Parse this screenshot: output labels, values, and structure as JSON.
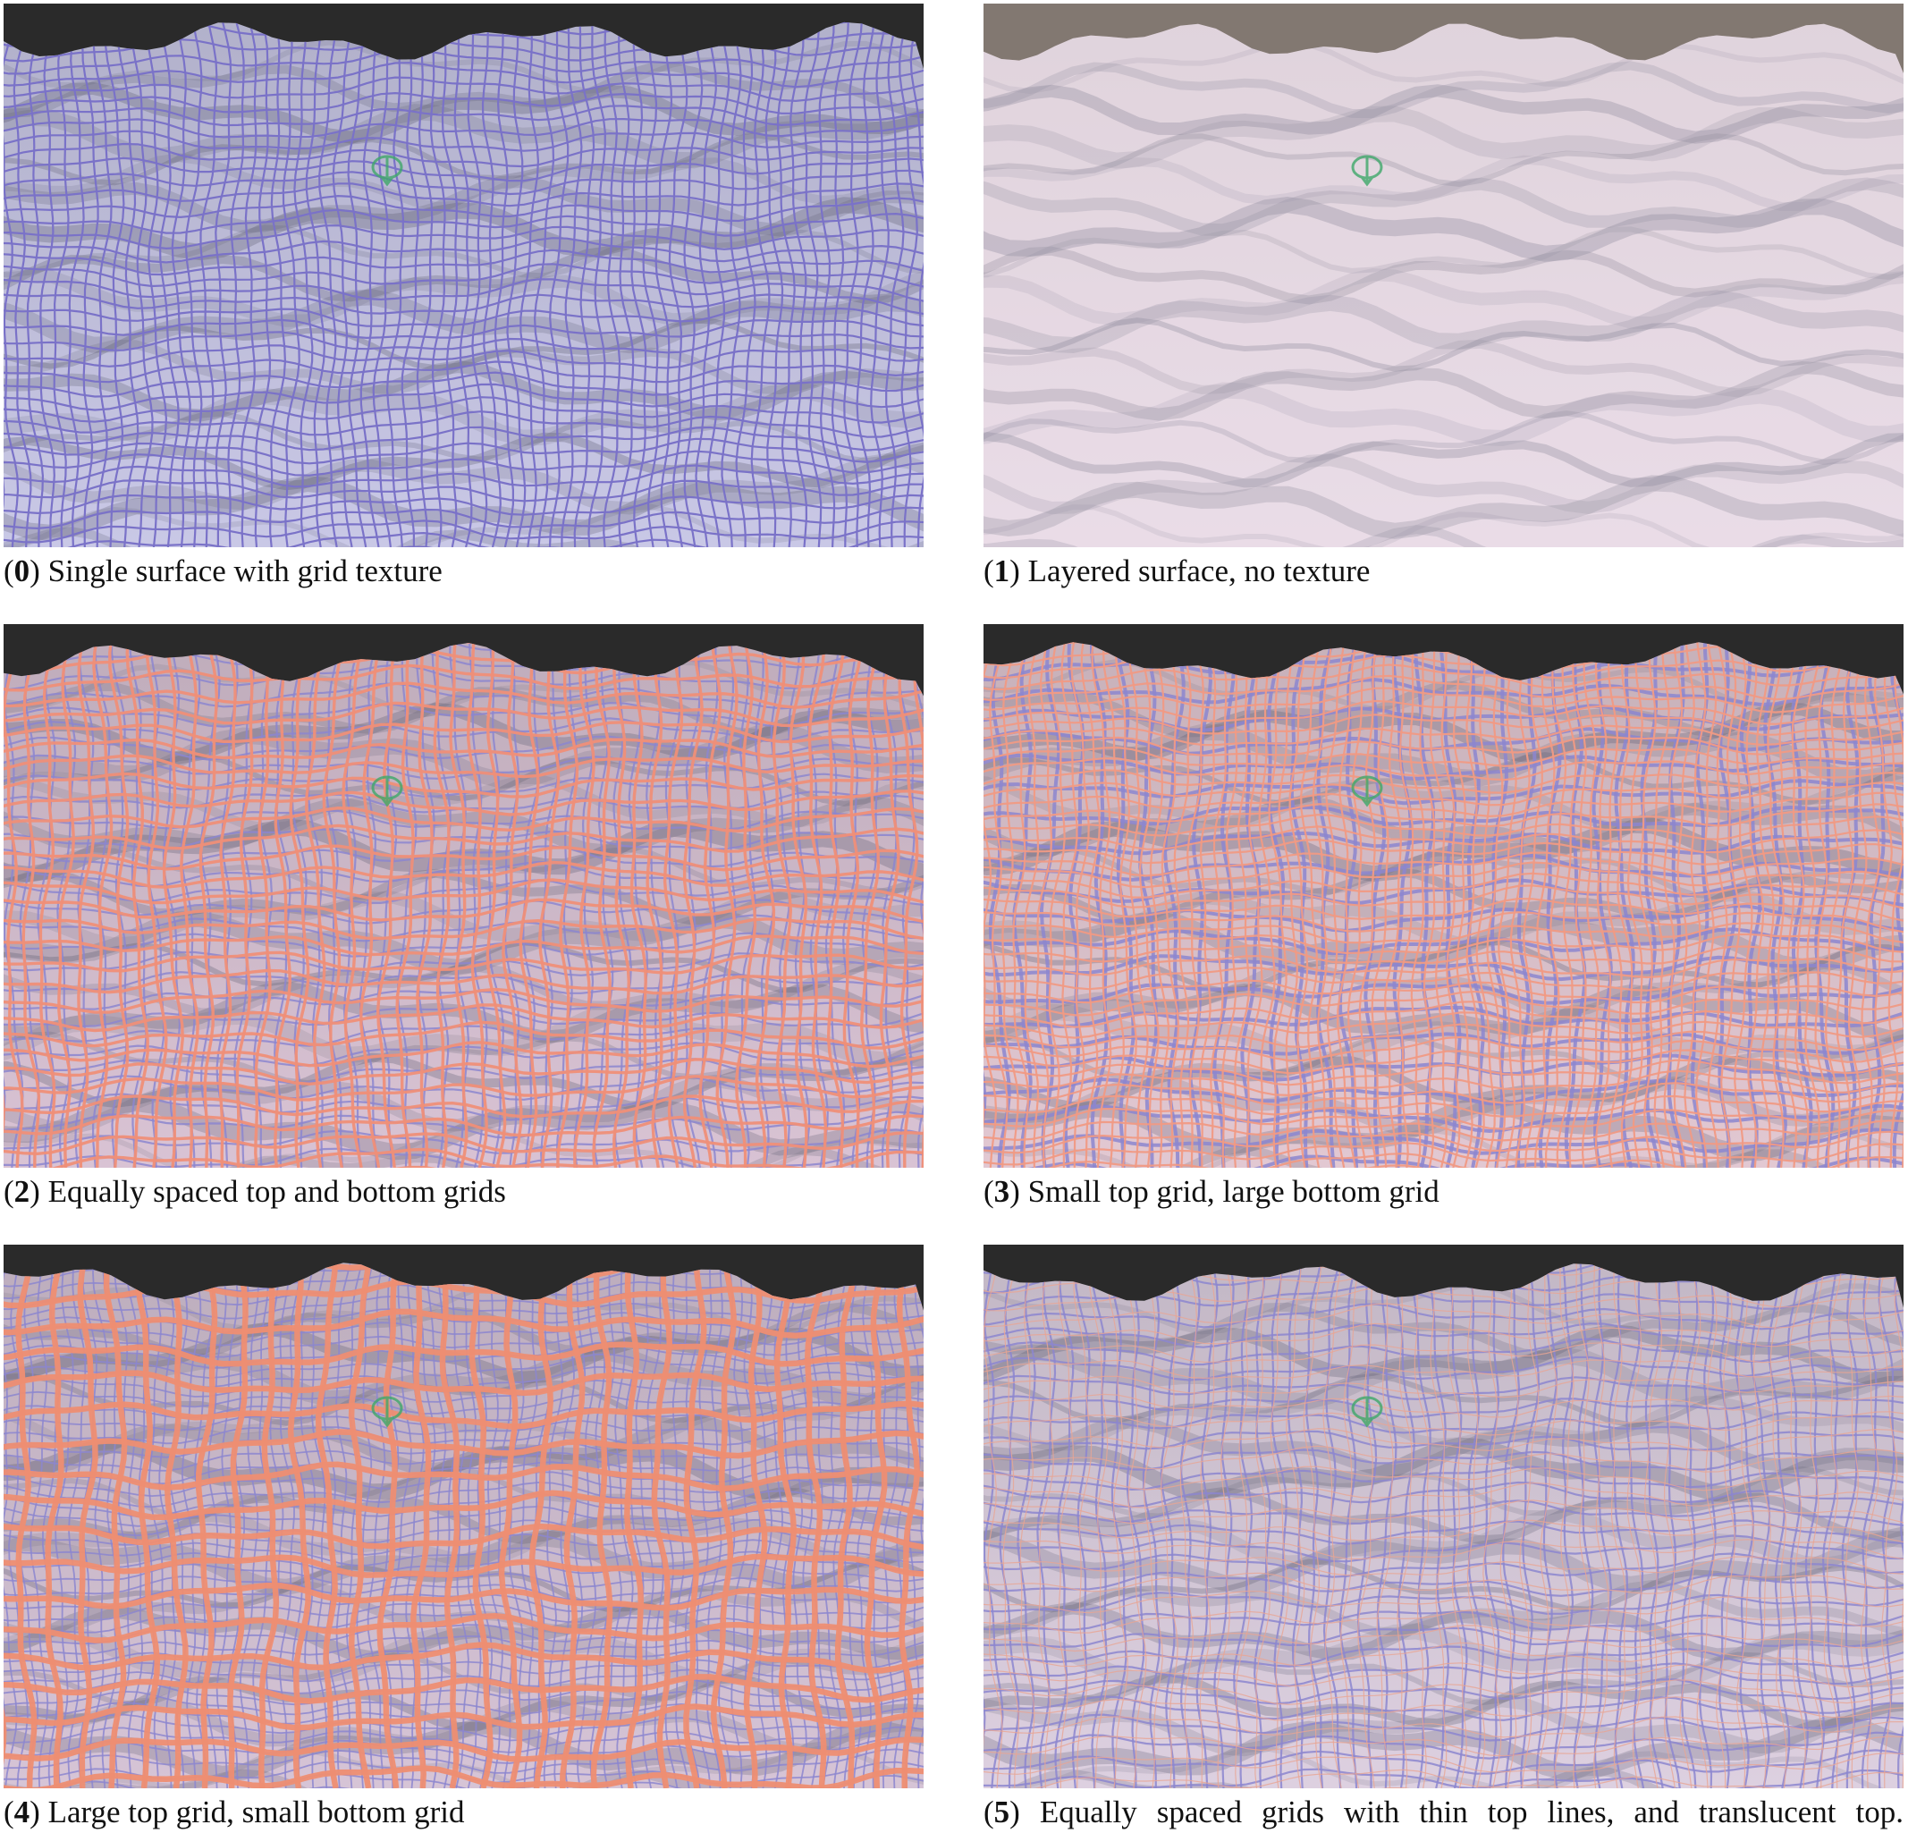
{
  "figure": {
    "panels": [
      {
        "number": "0",
        "label": "Single surface with grid texture",
        "surface_color": "#c9c8e6",
        "top_grid_color": "#7a72c8",
        "bottom_grid_color": "",
        "shading": "#5a5a6e"
      },
      {
        "number": "1",
        "label": "Layered surface, no texture",
        "surface_color": "#e6d8e4",
        "top_grid_color": "",
        "bottom_grid_color": "",
        "shading": "#5e5e74"
      },
      {
        "number": "2",
        "label": "Equally spaced top and bottom grids",
        "surface_color": "#d9c3d4",
        "top_grid_color": "#ef8f78",
        "bottom_grid_color": "#8c86cf",
        "shading": "#5c5c70"
      },
      {
        "number": "3",
        "label": "Small top grid, large bottom grid",
        "surface_color": "#e2c8d2",
        "top_grid_color": "#f09a84",
        "bottom_grid_color": "#8c86cf",
        "shading": "#5c5c70"
      },
      {
        "number": "4",
        "label": "Large top grid, small bottom grid",
        "surface_color": "#d6c4d6",
        "top_grid_color": "#ee8e72",
        "bottom_grid_color": "#8c86cf",
        "shading": "#5c5c70"
      },
      {
        "number": "5",
        "label": "Equally spaced grids with thin top lines, and translucent top.",
        "surface_color": "#ddd0e0",
        "top_grid_color": "#e8a594",
        "bottom_grid_color": "#8c86cf",
        "shading": "#5e5e72"
      }
    ],
    "colors": {
      "background": "#2a2a2a",
      "marker": "#3fa86a"
    }
  }
}
